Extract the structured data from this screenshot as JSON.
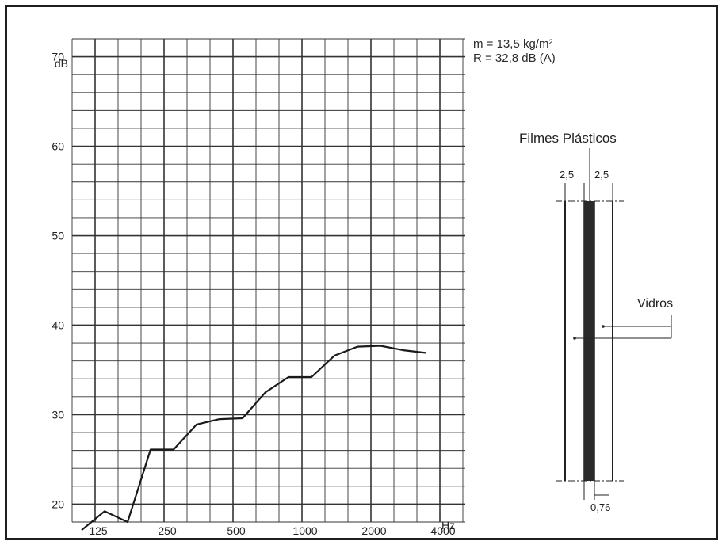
{
  "chart_data": {
    "type": "line",
    "x": [
      "100",
      "125",
      "160",
      "200",
      "250",
      "315",
      "400",
      "500",
      "630",
      "800",
      "1000",
      "1250",
      "1600",
      "2000",
      "2500",
      "3150"
    ],
    "series": [
      {
        "values": [
          17.1,
          19.2,
          18.0,
          26.1,
          26.1,
          28.9,
          29.5,
          29.6,
          32.5,
          34.2,
          34.2,
          36.6,
          37.6,
          37.7,
          37.2,
          36.9
        ]
      }
    ],
    "ylim": [
      18,
      72
    ],
    "yticks": [
      "20",
      "30",
      "40",
      "50",
      "60",
      "70"
    ],
    "xticks": [
      "125",
      "250",
      "500",
      "1000",
      "2000",
      "4000"
    ],
    "xunit": "Hz",
    "yunit": "dB",
    "annotations": [
      "m = 13,5 kg/m²",
      "R = 32,8 dB (A)"
    ],
    "grid": true
  },
  "diagram": {
    "title": "Filmes Plásticos",
    "label_glass": "Vidros",
    "dim_left": "2,5",
    "dim_right": "2,5",
    "dim_bottom": "0,76"
  }
}
